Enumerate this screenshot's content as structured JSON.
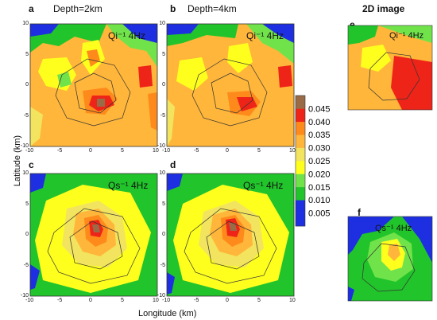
{
  "chart_data": {
    "type": "heatmap",
    "xlabel": "Longitude (km)",
    "ylabel": "Latitude (km)",
    "xlim": [
      -10,
      10
    ],
    "ylim": [
      -10,
      10
    ],
    "x_ticks": [
      -10,
      -5,
      0,
      5,
      10
    ],
    "y_ticks": [
      -10,
      -5,
      0,
      5,
      10
    ],
    "colorbar": {
      "ticks": [
        "0.045",
        "0.040",
        "0.035",
        "0.030",
        "0.025",
        "0.020",
        "0.015",
        "0.010",
        "0.005"
      ],
      "levels": [
        0,
        0.005,
        0.01,
        0.015,
        0.02,
        0.025,
        0.03,
        0.035,
        0.04,
        0.045,
        0.05
      ],
      "colors": [
        "#1d2fe0",
        "#1d2fe0",
        "#22c42b",
        "#71e34a",
        "#ffff1e",
        "#f2e45e",
        "#ffb63a",
        "#ff8a1c",
        "#ef2418",
        "#9a6b47"
      ]
    },
    "panels": [
      {
        "id": "a",
        "label": "a",
        "title": "Depth=2km",
        "inner_label": "Qi⁻¹ 4Hz"
      },
      {
        "id": "b",
        "label": "b",
        "title": "Depth=4km",
        "inner_label": "Qi⁻¹ 4Hz"
      },
      {
        "id": "c",
        "label": "c",
        "title": "",
        "inner_label": "Qs⁻¹ 4Hz"
      },
      {
        "id": "d",
        "label": "d",
        "title": "",
        "inner_label": "Qs⁻¹ 4Hz"
      },
      {
        "id": "e",
        "label": "e",
        "title": "2D image",
        "inner_label": "Qi⁻¹ 4Hz"
      },
      {
        "id": "f",
        "label": "f",
        "title": "",
        "inner_label": "Qs⁻¹ 4Hz"
      }
    ]
  }
}
